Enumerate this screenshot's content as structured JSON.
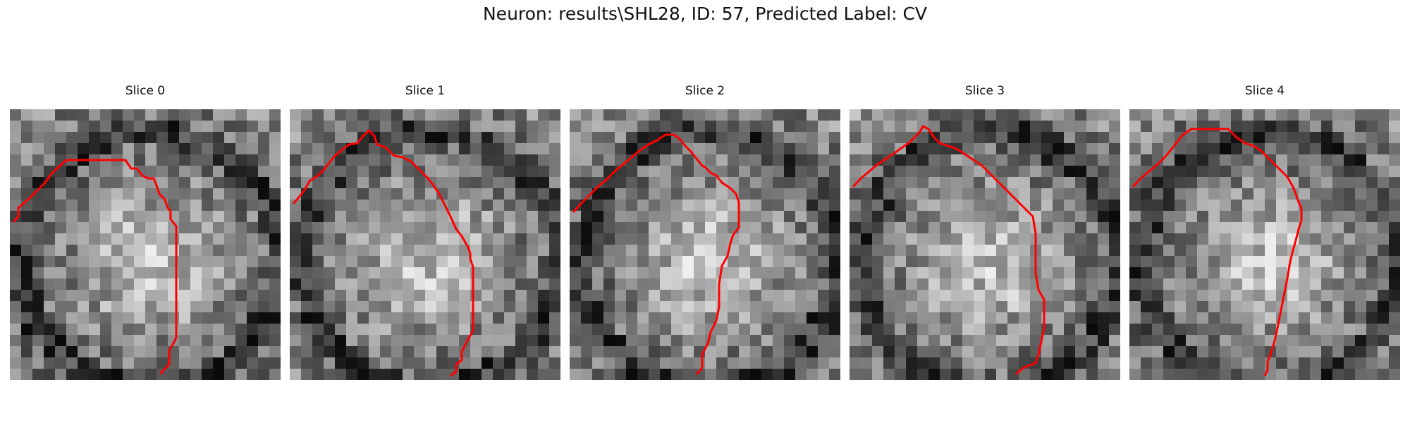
{
  "figure": {
    "title": "Neuron: results\\SHL28, ID: 57, Predicted Label: CV",
    "contour_color": "#ff0000"
  },
  "slices": [
    {
      "label": "Slice 0"
    },
    {
      "label": "Slice 1"
    },
    {
      "label": "Slice 2"
    },
    {
      "label": "Slice 3"
    },
    {
      "label": "Slice 4"
    }
  ]
}
